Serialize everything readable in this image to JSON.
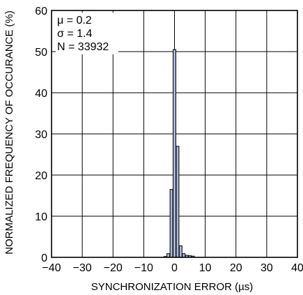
{
  "chart_data": {
    "type": "bar",
    "xlabel": "SYNCHRONIZATION ERROR (µs)",
    "ylabel": "NORMALIZED FREQUENCY OF OCCURANCE (%)",
    "xlim": [
      -40,
      40
    ],
    "ylim": [
      0,
      60
    ],
    "xticks": [
      "−40",
      "−30",
      "−20",
      "−10",
      "0",
      "10",
      "20",
      "30",
      "40"
    ],
    "yticks": [
      "0",
      "10",
      "20",
      "30",
      "40",
      "50",
      "60"
    ],
    "grid": true,
    "annotations": [
      "μ = 0.2",
      "σ = 1.4",
      "N = 33932"
    ],
    "bins": [
      {
        "x": -3,
        "value": 0.2
      },
      {
        "x": -2,
        "value": 0.9
      },
      {
        "x": -1,
        "value": 16.5
      },
      {
        "x": 0,
        "value": 50.5
      },
      {
        "x": 1,
        "value": 27
      },
      {
        "x": 2,
        "value": 2.8
      },
      {
        "x": 3,
        "value": 0.9
      },
      {
        "x": 4,
        "value": 0.5
      },
      {
        "x": 5,
        "value": 0.4
      },
      {
        "x": 6,
        "value": 0.3
      }
    ]
  }
}
